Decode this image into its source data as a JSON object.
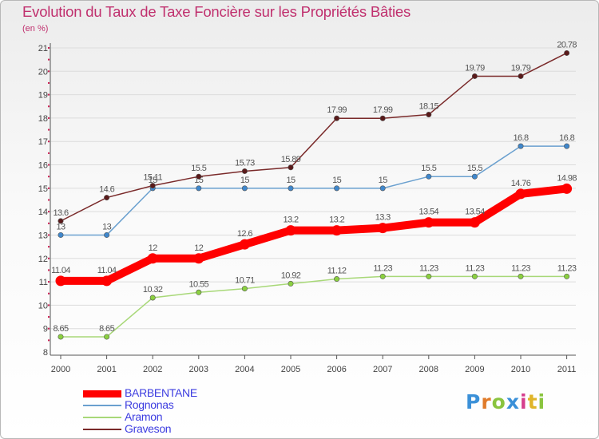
{
  "title": "Evolution du Taux de Taxe Foncière sur les Propriétés Bâties",
  "unit_label": "(en %)",
  "logo_text": "Proxiti",
  "chart_data": {
    "type": "line",
    "title": "Evolution du Taux de Taxe Foncière sur les Propriétés Bâties",
    "ylabel": "(en %)",
    "xlabel": "",
    "x": [
      2000,
      2001,
      2002,
      2003,
      2004,
      2005,
      2006,
      2007,
      2008,
      2009,
      2010,
      2011
    ],
    "x_tick_labels": [
      "2000",
      "2001",
      "2002",
      "2003",
      "2004",
      "2005",
      "2006",
      "2007",
      "2008",
      "2009",
      "2010",
      "2011"
    ],
    "ylim": [
      8,
      21
    ],
    "y_ticks": [
      8,
      9,
      10,
      11,
      12,
      13,
      14,
      15,
      16,
      17,
      18,
      19,
      20,
      21
    ],
    "grid": "horizontal",
    "legend_position": "bottom-left",
    "series": [
      {
        "name": "BARBENTANE",
        "color": "#ff0000",
        "emphasis": true,
        "values": [
          11.04,
          11.04,
          12,
          12,
          12.6,
          13.2,
          13.2,
          13.3,
          13.54,
          13.54,
          14.76,
          14.98
        ],
        "labels": [
          "11.04",
          "11.04",
          "12",
          "12",
          "12.6",
          "13.2",
          "13.2",
          "13.3",
          "13.54",
          "13.54",
          "14.76",
          "14.98"
        ]
      },
      {
        "name": "Rognonas",
        "color": "#6aa0cf",
        "marker_color": "#3f87cc",
        "values": [
          13,
          13,
          15,
          15,
          15,
          15,
          15,
          15,
          15.5,
          15.5,
          16.8,
          16.8
        ],
        "labels": [
          "13",
          "13",
          "15",
          "15",
          "15",
          "15",
          "15",
          "15",
          "15.5",
          "15.5",
          "16.8",
          "16.8"
        ]
      },
      {
        "name": "Aramon",
        "color": "#a8d878",
        "marker_color": "#8bd040",
        "values": [
          8.65,
          8.65,
          10.32,
          10.55,
          10.71,
          10.92,
          11.12,
          11.23,
          11.23,
          11.23,
          11.23,
          11.23
        ],
        "labels": [
          "8.65",
          "8.65",
          "10.32",
          "10.55",
          "10.71",
          "10.92",
          "11.12",
          "11.23",
          "11.23",
          "11.23",
          "11.23",
          "11.23"
        ]
      },
      {
        "name": "Graveson",
        "color": "#7a2a2a",
        "marker_color": "#5a1a1a",
        "values": [
          13.6,
          14.6,
          15.11,
          15.5,
          15.73,
          15.89,
          17.99,
          17.99,
          18.15,
          19.79,
          19.79,
          20.78
        ],
        "labels": [
          "13.6",
          "14.6",
          "15.11",
          "15.5",
          "15.73",
          "15.89",
          "17.99",
          "17.99",
          "18.15",
          "19.79",
          "19.79",
          "20.78"
        ]
      }
    ]
  }
}
